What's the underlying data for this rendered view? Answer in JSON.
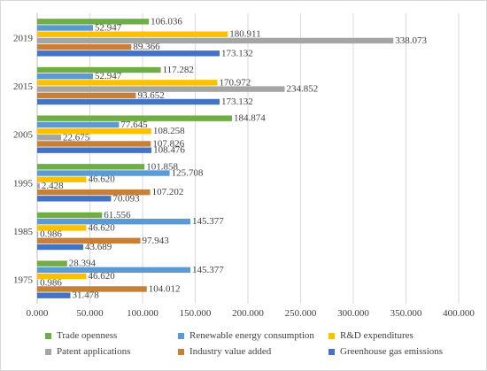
{
  "chart_data": {
    "type": "bar",
    "orientation": "horizontal",
    "title": "",
    "xlabel": "",
    "ylabel": "",
    "categories": [
      "1975",
      "1985",
      "1995",
      "2005",
      "2015",
      "2019"
    ],
    "xlim": [
      0,
      400
    ],
    "x_ticks": [
      "0.000",
      "50.000",
      "100.000",
      "150.000",
      "200.000",
      "250.000",
      "300.000",
      "350.000",
      "400.000"
    ],
    "grid": "vertical",
    "legend_position": "bottom",
    "series": [
      {
        "name": "Greenhouse gas emissions",
        "color": "#4472C4",
        "values": [
          31.478,
          43.689,
          70.093,
          108.476,
          173.132,
          173.132
        ],
        "labels": [
          "31.478",
          "43.689",
          "70.093",
          "108.476",
          "173.132",
          "173.132"
        ]
      },
      {
        "name": "Industry value added",
        "color": "#C5803A",
        "values": [
          104.012,
          97.943,
          107.202,
          107.826,
          93.652,
          89.366
        ],
        "labels": [
          "104.012",
          "97.943",
          "107.202",
          "107.826",
          "93.652",
          "89.366"
        ]
      },
      {
        "name": "Patent applications",
        "color": "#A5A5A5",
        "values": [
          0.986,
          0.986,
          2.428,
          22.675,
          234.852,
          338.073
        ],
        "labels": [
          "0.986",
          "0.986",
          "2.428",
          "22.675",
          "234.852",
          "338.073"
        ]
      },
      {
        "name": "R&D expenditures",
        "color": "#FFC000",
        "values": [
          46.62,
          46.62,
          46.62,
          108.258,
          170.972,
          180.911
        ],
        "labels": [
          "46.620",
          "46.620",
          "46.620",
          "108.258",
          "170.972",
          "180.911"
        ]
      },
      {
        "name": "Renewable energy consumption",
        "color": "#5B9BD5",
        "values": [
          145.377,
          145.377,
          125.708,
          77.645,
          52.947,
          52.947
        ],
        "labels": [
          "145.377",
          "145.377",
          "125.708",
          "77.645",
          "52.947",
          "52.947"
        ]
      },
      {
        "name": "Trade openness",
        "color": "#70AD47",
        "values": [
          28.394,
          61.556,
          101.858,
          184.874,
          117.282,
          106.036
        ],
        "labels": [
          "28.394",
          "61.556",
          "101.858",
          "184.874",
          "117.282",
          "106.036"
        ]
      }
    ],
    "legend_order": [
      "Trade openness",
      "Renewable energy consumption",
      "R&D expenditures",
      "Patent applications",
      "Industry value added",
      "Greenhouse gas emissions"
    ]
  }
}
